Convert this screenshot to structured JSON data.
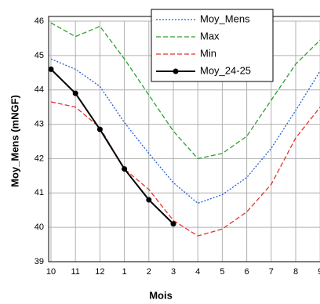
{
  "chart_data": {
    "type": "line",
    "x_label": "Mois",
    "y_label": "Moy_Mens (mNGF)",
    "categories": [
      "10",
      "11",
      "12",
      "1",
      "2",
      "3",
      "4",
      "5",
      "6",
      "7",
      "8",
      "9"
    ],
    "ylim": [
      39,
      46
    ],
    "yticks": [
      39,
      40,
      41,
      42,
      43,
      44,
      45,
      46
    ],
    "grid": true,
    "legend": "upper right",
    "series": [
      {
        "name": "Moy_Mens",
        "color": "#1f5fd6",
        "style": "dotted",
        "values": [
          44.9,
          44.6,
          44.1,
          43.05,
          42.15,
          41.3,
          40.7,
          40.95,
          41.45,
          42.3,
          43.4,
          44.55
        ]
      },
      {
        "name": "Max",
        "color": "#2ca02c",
        "style": "dashed",
        "values": [
          45.95,
          45.55,
          45.85,
          44.9,
          43.85,
          42.8,
          42.0,
          42.15,
          42.65,
          43.7,
          44.75,
          45.45
        ]
      },
      {
        "name": "Min",
        "color": "#e8302a",
        "style": "dashed",
        "values": [
          43.65,
          43.5,
          42.9,
          41.7,
          41.1,
          40.2,
          39.75,
          39.95,
          40.45,
          41.25,
          42.6,
          43.5
        ]
      },
      {
        "name": "Moy_24-25",
        "color": "#000000",
        "style": "solid",
        "marker": true,
        "values": [
          44.6,
          43.9,
          42.85,
          41.7,
          40.8,
          40.1,
          null,
          null,
          null,
          null,
          null,
          null
        ]
      }
    ]
  }
}
